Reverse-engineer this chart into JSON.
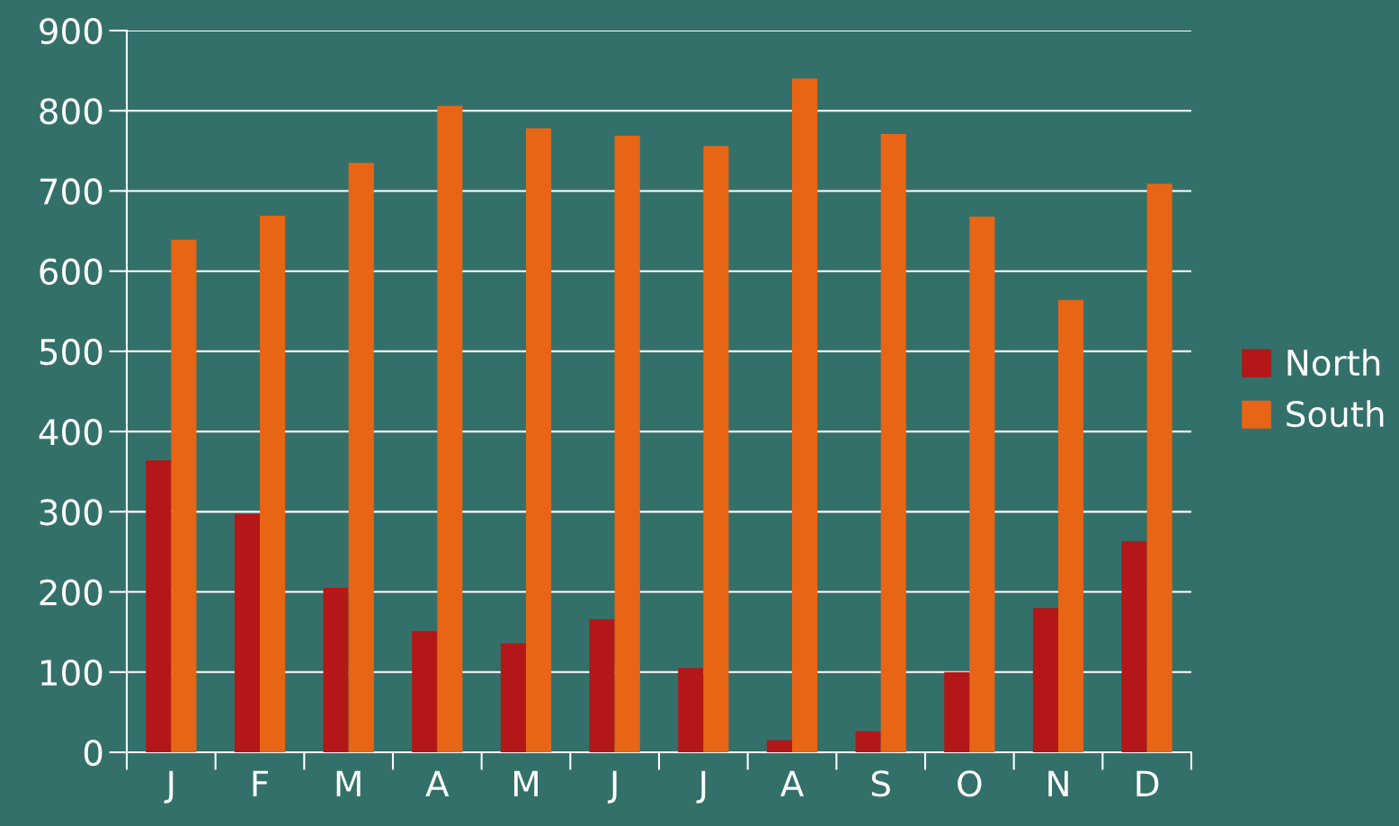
{
  "chart_data": {
    "type": "bar",
    "categories": [
      "J",
      "F",
      "M",
      "A",
      "M",
      "J",
      "J",
      "A",
      "S",
      "O",
      "N",
      "D"
    ],
    "series": [
      {
        "name": "North",
        "color": "#b31717",
        "values": [
          364,
          297,
          205,
          151,
          136,
          166,
          105,
          15,
          26,
          100,
          180,
          263
        ]
      },
      {
        "name": "South",
        "color": "#e86515",
        "values": [
          639,
          669,
          735,
          806,
          778,
          769,
          756,
          840,
          771,
          668,
          564,
          709
        ]
      }
    ],
    "ylim": [
      0,
      900
    ],
    "yticks": [
      0,
      100,
      200,
      300,
      400,
      500,
      600,
      700,
      800,
      900
    ],
    "grid": "y",
    "legend": "right"
  }
}
